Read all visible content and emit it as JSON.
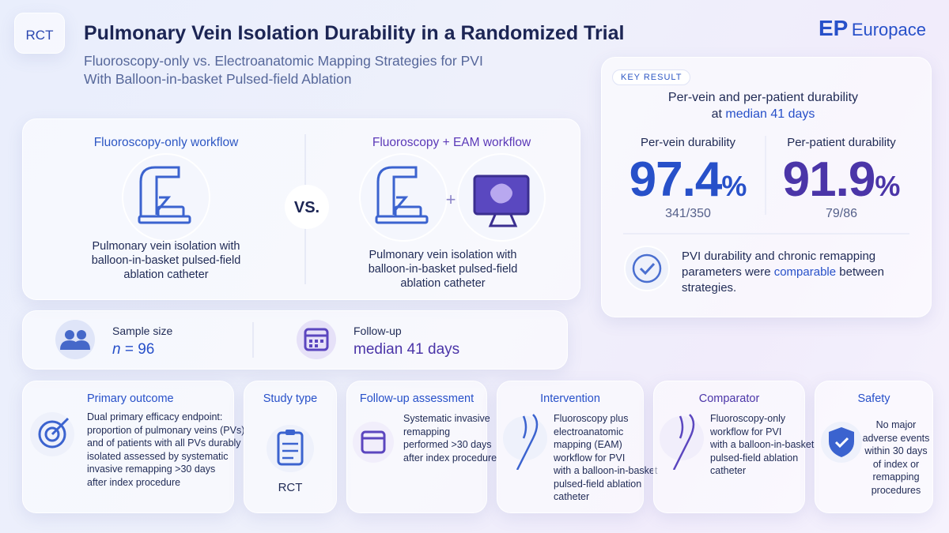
{
  "header": {
    "badge": "RCT",
    "title": "Pulmonary Vein Isolation Durability in a Randomized Trial",
    "subtitle": [
      "Fluoroscopy-only vs. Electroanatomic Mapping Strategies for PVI",
      "With Balloon-in-basket Pulsed-field Ablation"
    ],
    "brand": {
      "mark": "EP",
      "name": "Europace"
    }
  },
  "workflows": {
    "left": {
      "title": "Fluoroscopy-only workflow",
      "caption": [
        "Pulmonary vein isolation with",
        "balloon-in-basket pulsed-field",
        "ablation catheter"
      ]
    },
    "versus": "VS.",
    "plus": "+",
    "right": {
      "title": "Fluoroscopy + EAM workflow",
      "caption": [
        "Pulmonary vein isolation with",
        "balloon-in-basket pulsed-field",
        "ablation catheter"
      ]
    }
  },
  "stats": {
    "sample": {
      "label": "Sample size",
      "symbol": "n",
      "value": "= 96"
    },
    "follow_up": {
      "label": "Follow-up",
      "value": "median 41 days"
    }
  },
  "key_result": {
    "tag": "KEY RESULT",
    "heading": "Per-vein and per-patient durability",
    "heading_prefix": "at",
    "heading_highlight": "median 41 days",
    "metrics": [
      {
        "label": "Per-vein durability",
        "value": "97.4",
        "unit": "%",
        "fraction": "341/350"
      },
      {
        "label": "Per-patient durability",
        "value": "91.9",
        "unit": "%",
        "fraction": "79/86"
      }
    ],
    "conclusion": {
      "before": "PVI durability and chronic remapping parameters were",
      "highlight": "comparable",
      "after": "between strategies."
    }
  },
  "cards": [
    {
      "title": "Primary outcome",
      "body": [
        "Dual primary efficacy endpoint:",
        "proportion of pulmonary veins (PVs)",
        "and of patients with all PVs durably",
        "isolated assessed by systematic",
        "invasive remapping >30 days",
        "after index procedure"
      ]
    },
    {
      "title": "Study type",
      "body": [
        "RCT"
      ]
    },
    {
      "title": "Follow-up assessment",
      "body": [
        "Systematic invasive",
        "remapping",
        "performed >30 days",
        "after index procedure"
      ]
    },
    {
      "title": "Intervention",
      "body": [
        "Fluoroscopy plus",
        "electroanatomic",
        "mapping (EAM)",
        "workflow for PVI",
        "with a balloon-in-basket",
        "pulsed-field ablation",
        "catheter"
      ]
    },
    {
      "title": "Comparator",
      "body": [
        "Fluoroscopy-only",
        "workflow for PVI",
        "with a balloon-in-basket",
        "pulsed-field ablation",
        "catheter"
      ]
    },
    {
      "title": "Safety",
      "body": [
        "No major",
        "adverse events",
        "within 30 days",
        "of index or",
        "remapping",
        "procedures"
      ]
    }
  ]
}
